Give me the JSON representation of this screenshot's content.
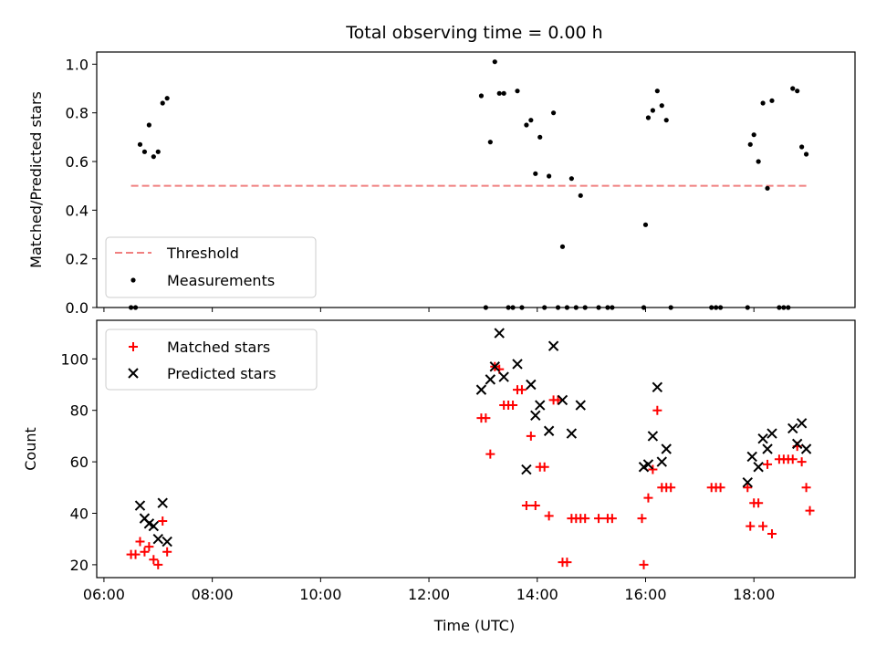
{
  "chart_data": [
    {
      "type": "scatter",
      "title": "Total observing time = 0.00 h",
      "ylabel": "Matched/Predicted stars",
      "xlim": [
        "05:52",
        "19:52"
      ],
      "ylim": [
        0,
        1.05
      ],
      "yticks": [
        "0.0",
        "0.2",
        "0.4",
        "0.6",
        "0.8",
        "1.0"
      ],
      "threshold": {
        "name": "Threshold",
        "value": 0.5,
        "x_start": "06:30",
        "x_end": "19:00",
        "color": "#f08080"
      },
      "series": [
        {
          "name": "Measurements",
          "color": "#000000",
          "points": [
            [
              "06:30",
              0.0
            ],
            [
              "06:35",
              0.0
            ],
            [
              "06:40",
              0.67
            ],
            [
              "06:45",
              0.64
            ],
            [
              "06:50",
              0.75
            ],
            [
              "06:55",
              0.62
            ],
            [
              "07:00",
              0.64
            ],
            [
              "07:05",
              0.84
            ],
            [
              "07:10",
              0.86
            ],
            [
              "12:58",
              0.87
            ],
            [
              "13:03",
              0.0
            ],
            [
              "13:08",
              0.68
            ],
            [
              "13:13",
              1.01
            ],
            [
              "13:18",
              0.88
            ],
            [
              "13:23",
              0.88
            ],
            [
              "13:28",
              0.0
            ],
            [
              "13:33",
              0.0
            ],
            [
              "13:38",
              0.89
            ],
            [
              "13:43",
              0.0
            ],
            [
              "13:48",
              0.75
            ],
            [
              "13:53",
              0.77
            ],
            [
              "13:58",
              0.55
            ],
            [
              "14:03",
              0.7
            ],
            [
              "14:08",
              0.0
            ],
            [
              "14:13",
              0.54
            ],
            [
              "14:18",
              0.8
            ],
            [
              "14:23",
              0.0
            ],
            [
              "14:28",
              0.25
            ],
            [
              "14:33",
              0.0
            ],
            [
              "14:38",
              0.53
            ],
            [
              "14:43",
              0.0
            ],
            [
              "14:48",
              0.46
            ],
            [
              "14:53",
              0.0
            ],
            [
              "15:08",
              0.0
            ],
            [
              "15:18",
              0.0
            ],
            [
              "15:23",
              0.0
            ],
            [
              "15:58",
              0.0
            ],
            [
              "16:00",
              0.34
            ],
            [
              "16:03",
              0.78
            ],
            [
              "16:08",
              0.81
            ],
            [
              "16:13",
              0.89
            ],
            [
              "16:18",
              0.83
            ],
            [
              "16:23",
              0.77
            ],
            [
              "16:28",
              0.0
            ],
            [
              "17:13",
              0.0
            ],
            [
              "17:18",
              0.0
            ],
            [
              "17:23",
              0.0
            ],
            [
              "17:53",
              0.0
            ],
            [
              "17:56",
              0.67
            ],
            [
              "18:00",
              0.71
            ],
            [
              "18:05",
              0.6
            ],
            [
              "18:10",
              0.84
            ],
            [
              "18:15",
              0.49
            ],
            [
              "18:20",
              0.85
            ],
            [
              "18:28",
              0.0
            ],
            [
              "18:33",
              0.0
            ],
            [
              "18:38",
              0.0
            ],
            [
              "18:43",
              0.9
            ],
            [
              "18:48",
              0.89
            ],
            [
              "18:53",
              0.66
            ],
            [
              "18:58",
              0.63
            ]
          ]
        }
      ],
      "legend": {
        "placement": "lower-left",
        "entries": [
          "Threshold",
          "Measurements"
        ]
      }
    },
    {
      "type": "scatter",
      "title": "",
      "xlabel": "Time (UTC)",
      "ylabel": "Count",
      "xlim": [
        "05:52",
        "19:52"
      ],
      "ylim": [
        15,
        115
      ],
      "yticks": [
        "20",
        "40",
        "60",
        "80",
        "100"
      ],
      "xticks": [
        "06:00",
        "08:00",
        "10:00",
        "12:00",
        "14:00",
        "16:00",
        "18:00"
      ],
      "series": [
        {
          "name": "Matched stars",
          "color": "#ff0000",
          "marker": "plus",
          "points": [
            [
              "06:30",
              24
            ],
            [
              "06:35",
              24
            ],
            [
              "06:40",
              29
            ],
            [
              "06:45",
              25
            ],
            [
              "06:50",
              27
            ],
            [
              "06:55",
              22
            ],
            [
              "07:00",
              20
            ],
            [
              "07:05",
              37
            ],
            [
              "07:10",
              25
            ],
            [
              "12:58",
              77
            ],
            [
              "13:03",
              77
            ],
            [
              "13:08",
              63
            ],
            [
              "13:13",
              97
            ],
            [
              "13:18",
              96
            ],
            [
              "13:23",
              82
            ],
            [
              "13:28",
              82
            ],
            [
              "13:33",
              82
            ],
            [
              "13:38",
              88
            ],
            [
              "13:43",
              88
            ],
            [
              "13:48",
              43
            ],
            [
              "13:53",
              70
            ],
            [
              "13:58",
              43
            ],
            [
              "14:03",
              58
            ],
            [
              "14:08",
              58
            ],
            [
              "14:13",
              39
            ],
            [
              "14:18",
              84
            ],
            [
              "14:23",
              84
            ],
            [
              "14:28",
              21
            ],
            [
              "14:33",
              21
            ],
            [
              "14:38",
              38
            ],
            [
              "14:43",
              38
            ],
            [
              "14:48",
              38
            ],
            [
              "14:53",
              38
            ],
            [
              "15:08",
              38
            ],
            [
              "15:18",
              38
            ],
            [
              "15:23",
              38
            ],
            [
              "15:58",
              20
            ],
            [
              "15:56",
              38
            ],
            [
              "16:03",
              46
            ],
            [
              "16:08",
              57
            ],
            [
              "16:13",
              80
            ],
            [
              "16:18",
              50
            ],
            [
              "16:23",
              50
            ],
            [
              "16:28",
              50
            ],
            [
              "17:13",
              50
            ],
            [
              "17:18",
              50
            ],
            [
              "17:23",
              50
            ],
            [
              "17:53",
              50
            ],
            [
              "17:56",
              35
            ],
            [
              "18:00",
              44
            ],
            [
              "18:05",
              44
            ],
            [
              "18:10",
              35
            ],
            [
              "18:15",
              59
            ],
            [
              "18:20",
              32
            ],
            [
              "18:28",
              61
            ],
            [
              "18:33",
              61
            ],
            [
              "18:38",
              61
            ],
            [
              "18:43",
              61
            ],
            [
              "18:48",
              66
            ],
            [
              "18:53",
              60
            ],
            [
              "18:58",
              50
            ],
            [
              "19:02",
              41
            ]
          ]
        },
        {
          "name": "Predicted stars",
          "color": "#000000",
          "marker": "x",
          "points": [
            [
              "06:40",
              43
            ],
            [
              "06:45",
              38
            ],
            [
              "06:50",
              36
            ],
            [
              "06:55",
              35
            ],
            [
              "07:00",
              30
            ],
            [
              "07:05",
              44
            ],
            [
              "07:10",
              29
            ],
            [
              "12:58",
              88
            ],
            [
              "13:08",
              92
            ],
            [
              "13:13",
              97
            ],
            [
              "13:18",
              110
            ],
            [
              "13:23",
              93
            ],
            [
              "13:38",
              98
            ],
            [
              "13:48",
              57
            ],
            [
              "13:53",
              90
            ],
            [
              "13:58",
              78
            ],
            [
              "14:03",
              82
            ],
            [
              "14:13",
              72
            ],
            [
              "14:18",
              105
            ],
            [
              "14:28",
              84
            ],
            [
              "14:38",
              71
            ],
            [
              "14:48",
              82
            ],
            [
              "15:58",
              58
            ],
            [
              "16:03",
              59
            ],
            [
              "16:08",
              70
            ],
            [
              "16:13",
              89
            ],
            [
              "16:18",
              60
            ],
            [
              "16:23",
              65
            ],
            [
              "17:53",
              52
            ],
            [
              "17:58",
              62
            ],
            [
              "18:05",
              58
            ],
            [
              "18:10",
              69
            ],
            [
              "18:15",
              65
            ],
            [
              "18:20",
              71
            ],
            [
              "18:43",
              73
            ],
            [
              "18:48",
              67
            ],
            [
              "18:53",
              75
            ],
            [
              "18:58",
              65
            ]
          ]
        }
      ],
      "legend": {
        "placement": "upper-left",
        "entries": [
          "Matched stars",
          "Predicted stars"
        ]
      }
    }
  ]
}
